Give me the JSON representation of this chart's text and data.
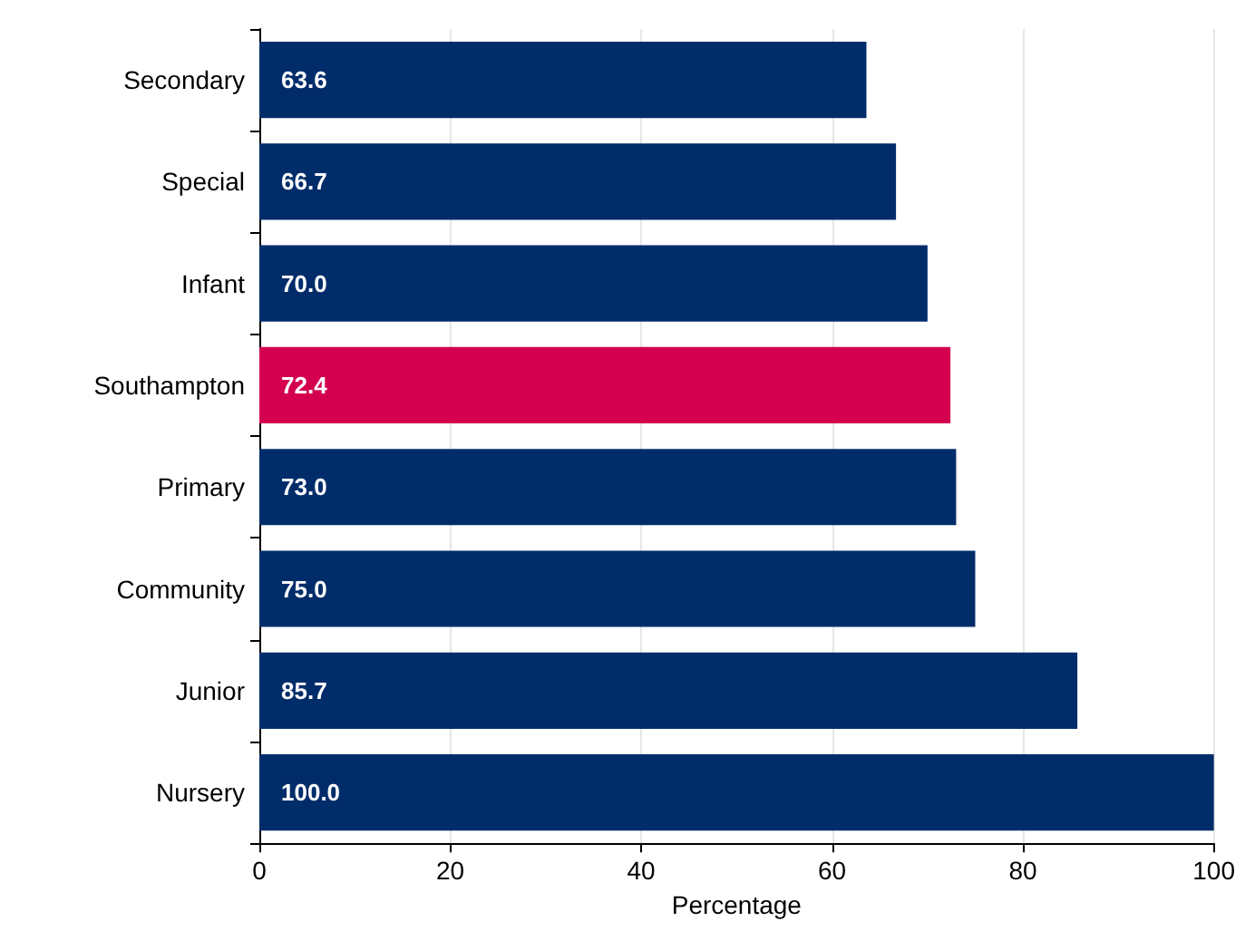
{
  "chart_data": {
    "type": "bar",
    "orientation": "horizontal",
    "categories": [
      "Secondary",
      "Special",
      "Infant",
      "Southampton",
      "Primary",
      "Community",
      "Junior",
      "Nursery"
    ],
    "values": [
      63.6,
      66.7,
      70.0,
      72.4,
      73.0,
      75.0,
      85.7,
      100.0
    ],
    "colors": [
      "#002d6a",
      "#002d6a",
      "#002d6a",
      "#d4004f",
      "#002d6a",
      "#002d6a",
      "#002d6a",
      "#002d6a"
    ],
    "value_labels": [
      "63.6",
      "66.7",
      "70.0",
      "72.4",
      "73.0",
      "75.0",
      "85.7",
      "100.0"
    ],
    "xlabel": "Percentage",
    "xlim": [
      0,
      100
    ],
    "xticks": [
      0,
      20,
      40,
      60,
      80,
      100
    ],
    "grid": "x"
  }
}
